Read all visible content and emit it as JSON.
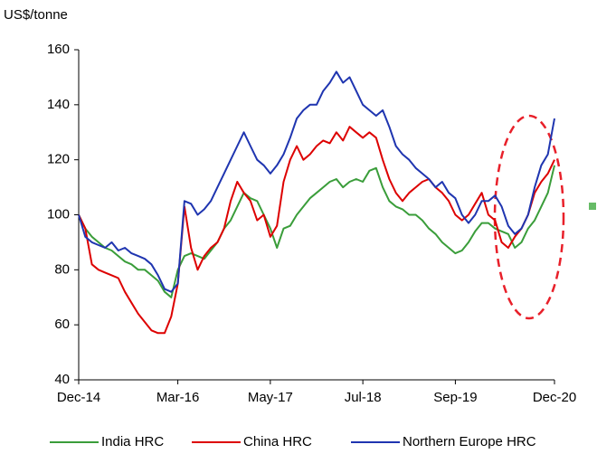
{
  "chart_data": {
    "type": "line",
    "y_label": "US$/tonne",
    "categories": [
      "Dec-14",
      null,
      null,
      null,
      null,
      null,
      null,
      null,
      null,
      null,
      null,
      null,
      null,
      null,
      null,
      "Mar-16",
      null,
      null,
      null,
      null,
      null,
      null,
      null,
      null,
      null,
      null,
      null,
      null,
      null,
      "May-17",
      null,
      null,
      null,
      null,
      null,
      null,
      null,
      null,
      null,
      null,
      null,
      null,
      null,
      "Jul-18",
      null,
      null,
      null,
      null,
      null,
      null,
      null,
      null,
      null,
      null,
      null,
      null,
      null,
      "Sep-19",
      null,
      null,
      null,
      null,
      null,
      null,
      null,
      null,
      null,
      null,
      null,
      null,
      null,
      null,
      "Dec-20"
    ],
    "series": [
      {
        "name": "India HRC",
        "color": "#3a9d3a",
        "values": [
          100,
          95,
          92,
          90,
          88,
          87,
          85,
          83,
          82,
          80,
          80,
          78,
          76,
          72,
          70,
          80,
          85,
          86,
          85,
          84,
          87,
          90,
          95,
          98,
          103,
          108,
          106,
          105,
          100,
          95,
          88,
          95,
          96,
          100,
          103,
          106,
          108,
          110,
          112,
          113,
          110,
          112,
          113,
          112,
          116,
          117,
          110,
          105,
          103,
          102,
          100,
          100,
          98,
          95,
          93,
          90,
          88,
          86,
          87,
          90,
          94,
          97,
          97,
          95,
          94,
          93,
          88,
          90,
          95,
          98,
          103,
          108,
          118
        ]
      },
      {
        "name": "China HRC",
        "color": "#dd0000",
        "values": [
          100,
          95,
          82,
          80,
          79,
          78,
          77,
          72,
          68,
          64,
          61,
          58,
          57,
          57,
          63,
          75,
          103,
          88,
          80,
          85,
          88,
          90,
          95,
          105,
          112,
          108,
          105,
          98,
          100,
          92,
          96,
          112,
          120,
          125,
          120,
          122,
          125,
          127,
          126,
          130,
          127,
          132,
          130,
          128,
          130,
          128,
          120,
          113,
          108,
          105,
          108,
          110,
          112,
          113,
          110,
          108,
          105,
          100,
          98,
          100,
          104,
          108,
          100,
          98,
          90,
          88,
          92,
          95,
          100,
          108,
          112,
          115,
          120
        ]
      },
      {
        "name": "Northern Europe HRC",
        "color": "#1f35b0",
        "values": [
          100,
          92,
          90,
          89,
          88,
          90,
          87,
          88,
          86,
          85,
          84,
          82,
          78,
          73,
          72,
          75,
          105,
          104,
          100,
          102,
          105,
          110,
          115,
          120,
          125,
          130,
          125,
          120,
          118,
          115,
          118,
          122,
          128,
          135,
          138,
          140,
          140,
          145,
          148,
          152,
          148,
          150,
          145,
          140,
          138,
          136,
          138,
          132,
          125,
          122,
          120,
          117,
          115,
          113,
          110,
          112,
          108,
          106,
          100,
          97,
          100,
          105,
          105,
          107,
          103,
          96,
          93,
          95,
          100,
          110,
          118,
          122,
          135
        ]
      }
    ],
    "ylim": [
      40,
      160
    ],
    "yticks": [
      40,
      60,
      80,
      100,
      120,
      140,
      160
    ]
  }
}
